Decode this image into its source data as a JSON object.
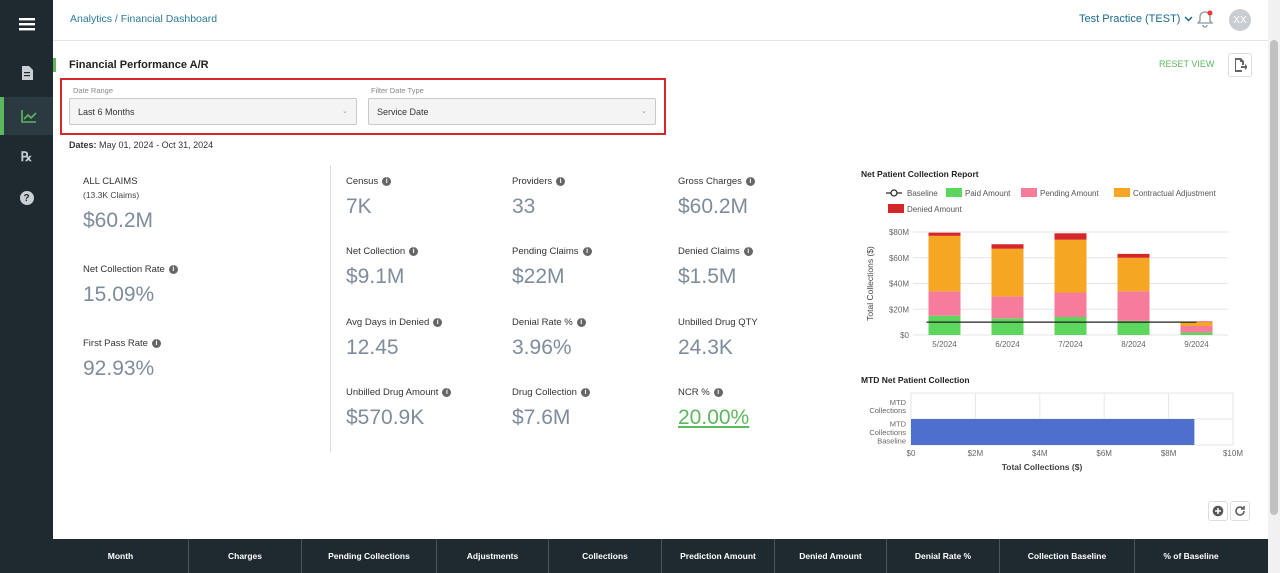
{
  "breadcrumb": "Analytics / Financial Dashboard",
  "practice": "Test Practice (TEST)",
  "avatar_initials": "XX",
  "section_title": "Financial Performance A/R",
  "reset_label": "RESET VIEW",
  "filters": {
    "date_range_label": "Date Range",
    "date_range_value": "Last 6 Months",
    "date_type_label": "Filter Date Type",
    "date_type_value": "Service Date"
  },
  "dates_label": "Dates:",
  "dates_value": "May 01, 2024 - Oct 31, 2024",
  "metrics": {
    "all_claims_label": "ALL CLAIMS",
    "all_claims_sub": "(13.3K Claims)",
    "all_claims_value": "$60.2M",
    "ncr_rate_label": "Net Collection Rate",
    "ncr_rate_value": "15.09%",
    "fpr_label": "First Pass Rate",
    "fpr_value": "92.93%",
    "census_label": "Census",
    "census_value": "7K",
    "providers_label": "Providers",
    "providers_value": "33",
    "gross_label": "Gross Charges",
    "gross_value": "$60.2M",
    "netcol_label": "Net Collection",
    "netcol_value": "$9.1M",
    "pending_label": "Pending Claims",
    "pending_value": "$22M",
    "denied_label": "Denied Claims",
    "denied_value": "$1.5M",
    "avgdays_label": "Avg Days in Denied",
    "avgdays_value": "12.45",
    "denialrate_label": "Denial Rate %",
    "denialrate_value": "3.96%",
    "unbilledqty_label": "Unbilled Drug QTY",
    "unbilledqty_value": "24.3K",
    "unbilledamt_label": "Unbilled Drug Amount",
    "unbilledamt_value": "$570.9K",
    "drugcol_label": "Drug Collection",
    "drugcol_value": "$7.6M",
    "ncrpct_label": "NCR %",
    "ncrpct_value": "20.00%"
  },
  "colors": {
    "paid": "#5cd65c",
    "pending": "#f77b9a",
    "contractual": "#f5a623",
    "denied": "#d62728",
    "mtd": "#4f6fcf"
  },
  "chart_data": [
    {
      "type": "bar",
      "title": "Net Patient Collection Report",
      "ylabel": "Total Collections ($)",
      "categories": [
        "5/2024",
        "6/2024",
        "7/2024",
        "8/2024",
        "9/2024"
      ],
      "series": [
        {
          "name": "Paid Amount",
          "values": [
            15,
            13,
            14,
            11,
            2
          ]
        },
        {
          "name": "Pending Amount",
          "values": [
            19,
            17,
            19,
            23,
            5
          ]
        },
        {
          "name": "Contractual Adjustment",
          "values": [
            43,
            37,
            41,
            26,
            3
          ]
        },
        {
          "name": "Denied Amount",
          "values": [
            2.5,
            3.5,
            5,
            3,
            0.5
          ]
        }
      ],
      "baseline": {
        "name": "Baseline",
        "values": [
          10,
          10,
          10,
          10,
          10
        ]
      },
      "ylim": [
        0,
        80
      ],
      "yticks": [
        "$0",
        "$20M",
        "$40M",
        "$60M",
        "$80M"
      ]
    },
    {
      "type": "bar",
      "title": "MTD Net Patient Collection",
      "xlabel": "Total Collections ($)",
      "categories": [
        "MTD Collections",
        "MTD Collections Baseline"
      ],
      "values": [
        0,
        8.8
      ],
      "xlim": [
        0,
        10
      ],
      "xticks": [
        "$0",
        "$2M",
        "$4M",
        "$6M",
        "$8M",
        "$10M"
      ]
    }
  ],
  "table_headers": [
    "Month",
    "Charges",
    "Pending Collections",
    "Adjustments",
    "Collections",
    "Prediction Amount",
    "Denied Amount",
    "Denial Rate %",
    "Collection Baseline",
    "% of Baseline"
  ]
}
